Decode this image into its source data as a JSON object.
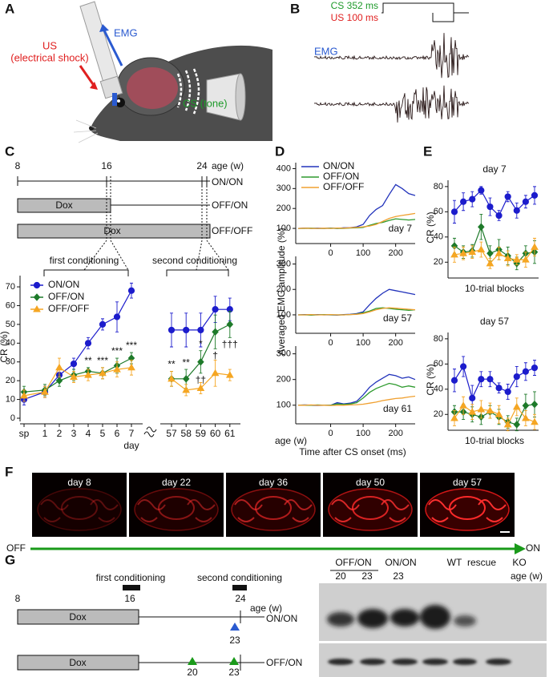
{
  "panels": {
    "labels": [
      "A",
      "B",
      "C",
      "D",
      "E",
      "F",
      "G"
    ]
  },
  "panel_a": {
    "us": "US",
    "us_note": "(electrical shock)",
    "emg": "EMG",
    "cs": "CS (tone)"
  },
  "panel_b": {
    "cs": "CS 352 ms",
    "us": "US 100 ms",
    "emg": "EMG"
  },
  "panel_c_timeline": {
    "ages": [
      "8",
      "16",
      "24"
    ],
    "age_unit": "age (w)",
    "groups": [
      "ON/ON",
      "OFF/ON",
      "OFF/OFF"
    ],
    "dox": [
      "Dox",
      "Dox"
    ],
    "first": "first conditioning",
    "second": "second conditioning"
  },
  "chart_data": [
    {
      "type": "line",
      "categories": [
        "sp",
        "1",
        "2",
        "3",
        "4",
        "5",
        "6",
        "7",
        "57",
        "58",
        "59",
        "60",
        "61"
      ],
      "xlabel": "day",
      "ylabel": "CR (%)",
      "ylim": [
        0,
        76
      ],
      "yticks": [
        0,
        10,
        20,
        30,
        40,
        50,
        60,
        70
      ],
      "series": [
        {
          "name": "ON/ON",
          "color": "#1c1ccc",
          "marker": "circle",
          "values": [
            10,
            14,
            23,
            29,
            40,
            50,
            54,
            68,
            47,
            47,
            47,
            58,
            58
          ],
          "errors": [
            3,
            3,
            3,
            3,
            3,
            3,
            8,
            4,
            9,
            9,
            9,
            7,
            6
          ]
        },
        {
          "name": "OFF/ON",
          "color": "#1e7a2a",
          "marker": "diamond",
          "values": [
            14,
            15,
            20,
            23,
            25,
            24,
            28,
            32,
            21,
            21,
            30,
            46,
            50
          ],
          "errors": [
            3,
            3,
            3,
            3,
            2,
            3,
            4,
            3,
            4,
            5,
            6,
            9,
            7
          ]
        },
        {
          "name": "OFF/OFF",
          "color": "#f5a623",
          "marker": "triangle",
          "values": [
            12,
            14,
            27,
            22,
            23,
            24,
            26,
            27,
            21,
            15,
            16,
            24,
            23
          ],
          "errors": [
            3,
            3,
            5,
            3,
            3,
            3,
            4,
            4,
            4,
            3,
            3,
            7,
            3
          ]
        }
      ],
      "annotations": [
        {
          "text": "**",
          "at": "4"
        },
        {
          "text": "***",
          "at": "5"
        },
        {
          "text": "***",
          "at": "6"
        },
        {
          "text": "***",
          "at": "7"
        },
        {
          "text": "**",
          "at": "57"
        },
        {
          "text": "**",
          "at": "58"
        },
        {
          "text": "*",
          "at": "59"
        },
        {
          "text": "††",
          "at": "59",
          "side": "below"
        },
        {
          "text": "†",
          "at": "60",
          "side": "below"
        },
        {
          "text": "†††",
          "at": "61",
          "side": "below"
        }
      ]
    },
    {
      "type": "line",
      "title": "day 7",
      "x": [
        -100,
        -80,
        -60,
        -40,
        -20,
        0,
        20,
        40,
        60,
        80,
        100,
        120,
        140,
        160,
        180,
        200,
        220,
        240,
        260
      ],
      "xlim": [
        -100,
        260
      ],
      "xticks": [
        0,
        100,
        200
      ],
      "ylim": [
        40,
        430
      ],
      "yticks": [
        100,
        200,
        300,
        400
      ],
      "series": [
        {
          "name": "ON/ON",
          "color": "#2233bb",
          "values": [
            100,
            102,
            100,
            101,
            100,
            102,
            100,
            103,
            104,
            108,
            120,
            165,
            195,
            215,
            270,
            320,
            300,
            275,
            265
          ]
        },
        {
          "name": "OFF/ON",
          "color": "#2e9a2e",
          "values": [
            100,
            100,
            101,
            100,
            100,
            101,
            100,
            100,
            102,
            103,
            105,
            115,
            125,
            130,
            140,
            148,
            145,
            142,
            145
          ]
        },
        {
          "name": "OFF/OFF",
          "color": "#f0a030",
          "values": [
            100,
            101,
            100,
            100,
            101,
            100,
            102,
            101,
            103,
            105,
            108,
            112,
            120,
            135,
            150,
            160,
            165,
            170,
            175
          ]
        }
      ]
    },
    {
      "type": "line",
      "title": "day 57",
      "ylabel": "Averaged EMG amplitude (%)",
      "x": [
        -100,
        -80,
        -60,
        -40,
        -20,
        0,
        20,
        40,
        60,
        80,
        100,
        120,
        140,
        160,
        180,
        200,
        220,
        240,
        260
      ],
      "xlim": [
        -100,
        260
      ],
      "xticks": [
        0,
        100,
        200
      ],
      "ylim": [
        40,
        330
      ],
      "yticks": [
        100,
        200,
        300
      ],
      "series": [
        {
          "color": "#2233bb",
          "values": [
            100,
            101,
            100,
            101,
            100,
            100,
            99,
            101,
            102,
            105,
            112,
            140,
            165,
            185,
            200,
            195,
            190,
            185,
            180
          ]
        },
        {
          "color": "#2e9a2e",
          "values": [
            100,
            100,
            99,
            100,
            101,
            100,
            100,
            100,
            101,
            103,
            108,
            115,
            125,
            128,
            125,
            122,
            120,
            118,
            120
          ]
        },
        {
          "color": "#f0a030",
          "values": [
            100,
            100,
            101,
            100,
            100,
            101,
            100,
            100,
            101,
            102,
            105,
            112,
            120,
            125,
            128,
            126,
            124,
            122,
            120
          ]
        }
      ]
    },
    {
      "type": "line",
      "title": "day 61",
      "xlabel": "Time after CS onset (ms)",
      "x_note": "age (w)",
      "x": [
        -100,
        -80,
        -60,
        -40,
        -20,
        0,
        20,
        40,
        60,
        80,
        100,
        120,
        140,
        160,
        180,
        200,
        220,
        240,
        260
      ],
      "xlim": [
        -100,
        260
      ],
      "xticks": [
        0,
        100,
        200
      ],
      "ylim": [
        40,
        330
      ],
      "yticks": [
        100,
        200,
        300
      ],
      "series": [
        {
          "color": "#2233bb",
          "values": [
            100,
            101,
            100,
            99,
            100,
            100,
            110,
            105,
            108,
            115,
            140,
            170,
            190,
            205,
            220,
            215,
            205,
            210,
            200
          ]
        },
        {
          "color": "#2e9a2e",
          "values": [
            100,
            100,
            100,
            101,
            100,
            100,
            105,
            103,
            105,
            110,
            128,
            150,
            165,
            175,
            185,
            180,
            170,
            175,
            170
          ]
        },
        {
          "color": "#f0a030",
          "values": [
            100,
            100,
            101,
            100,
            100,
            99,
            100,
            100,
            101,
            102,
            104,
            108,
            112,
            118,
            122,
            126,
            128,
            132,
            135
          ]
        }
      ]
    },
    {
      "type": "line",
      "title": "day 7",
      "xlabel": "10-trial blocks",
      "ylabel": "CR (%)",
      "ylim": [
        10,
        85
      ],
      "yticks": [
        20,
        40,
        60,
        80
      ],
      "series": [
        {
          "color": "#1c1ccc",
          "marker": "circle",
          "values": [
            60,
            68,
            70,
            77,
            64,
            57,
            72,
            61,
            68,
            73
          ],
          "errors": [
            9,
            7,
            6,
            3,
            7,
            4,
            4,
            6,
            5,
            7
          ]
        },
        {
          "color": "#1e7a2a",
          "marker": "diamond",
          "values": [
            33,
            28,
            29,
            48,
            27,
            30,
            25,
            19,
            27,
            28
          ],
          "errors": [
            6,
            5,
            5,
            10,
            6,
            8,
            7,
            5,
            6,
            9
          ]
        },
        {
          "color": "#f5a623",
          "marker": "triangle",
          "values": [
            26,
            27,
            28,
            30,
            19,
            27,
            23,
            22,
            22,
            32
          ],
          "errors": [
            6,
            5,
            5,
            6,
            4,
            5,
            6,
            4,
            6,
            7
          ]
        }
      ]
    },
    {
      "type": "line",
      "title": "day 57",
      "xlabel": "10-trial blocks",
      "ylabel": "CR (%)",
      "ylim": [
        10,
        85
      ],
      "yticks": [
        20,
        40,
        60,
        80
      ],
      "series": [
        {
          "color": "#1c1ccc",
          "marker": "circle",
          "values": [
            47,
            58,
            33,
            48,
            48,
            41,
            38,
            50,
            54,
            57
          ],
          "errors": [
            9,
            8,
            10,
            6,
            6,
            4,
            6,
            8,
            7,
            6
          ]
        },
        {
          "color": "#1e7a2a",
          "marker": "diamond",
          "values": [
            22,
            22,
            20,
            18,
            22,
            18,
            14,
            12,
            27,
            28
          ],
          "errors": [
            5,
            6,
            6,
            6,
            5,
            6,
            5,
            5,
            9,
            10
          ]
        },
        {
          "color": "#f5a623",
          "marker": "triangle",
          "values": [
            17,
            27,
            22,
            24,
            23,
            20,
            12,
            26,
            17,
            14
          ],
          "errors": [
            6,
            7,
            6,
            7,
            6,
            7,
            5,
            7,
            6,
            6
          ]
        }
      ]
    }
  ],
  "panel_f": {
    "days": [
      "day 8",
      "day 22",
      "day 36",
      "day 50",
      "day 57"
    ],
    "off": "OFF",
    "on": "ON"
  },
  "panel_g": {
    "first": "first conditioning",
    "second": "second conditioning",
    "ages": [
      "8",
      "16",
      "24"
    ],
    "age_unit": "age (w)",
    "groups": [
      "ON/ON",
      "OFF/ON"
    ],
    "dox": [
      "Dox",
      "Dox"
    ],
    "on_marker": "23",
    "off_markers": [
      "20",
      "23"
    ],
    "blot_groups": [
      "OFF/ON",
      "ON/ON",
      "WT",
      "rescue",
      "KO"
    ],
    "blot_ages": [
      "20",
      "23",
      "23"
    ],
    "blot_age_unit": "age (w)"
  }
}
